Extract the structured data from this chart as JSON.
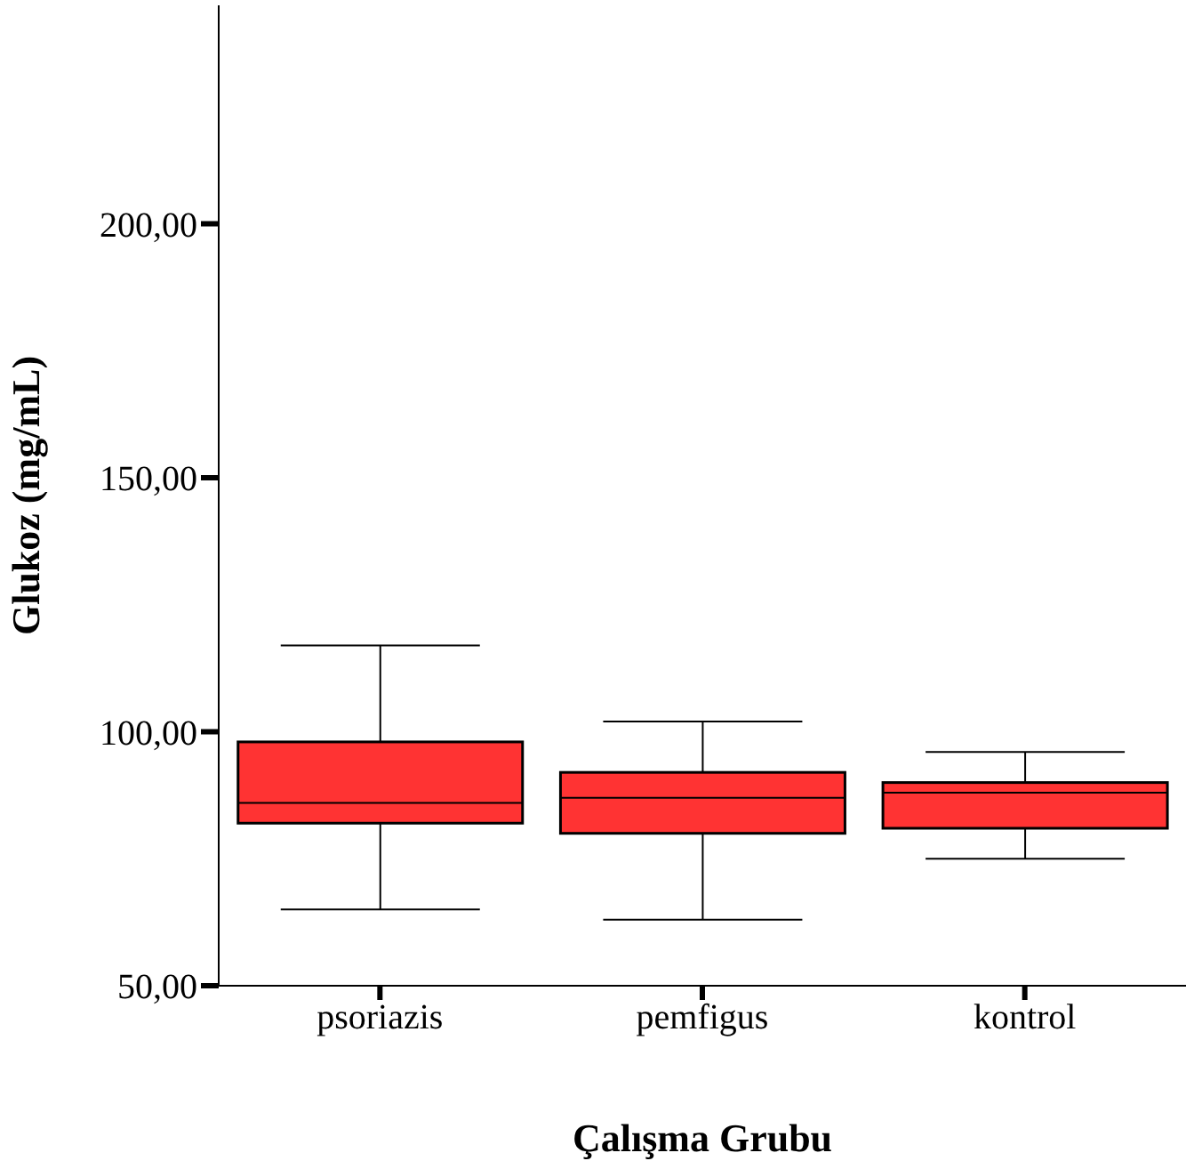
{
  "chart_data": {
    "type": "box",
    "xlabel": "Çalışma Grubu",
    "ylabel": "Glukoz (mg/mL)",
    "categories": [
      "psoriazis",
      "pemfigus",
      "kontrol"
    ],
    "color": "#ff3333",
    "boxes": [
      {
        "low": 65,
        "q1": 82,
        "median": 86,
        "q3": 98,
        "high": 117
      },
      {
        "low": 63,
        "q1": 80,
        "median": 87,
        "q3": 92,
        "high": 102
      },
      {
        "low": 75,
        "q1": 81,
        "median": 88,
        "q3": 90,
        "high": 96
      }
    ],
    "ylim": [
      50,
      243
    ],
    "yticks": [
      {
        "value": 50,
        "label": "50,00"
      },
      {
        "value": 100,
        "label": "100,00"
      },
      {
        "value": 150,
        "label": "150,00"
      },
      {
        "value": 200,
        "label": "200,00"
      }
    ],
    "grid": false
  }
}
